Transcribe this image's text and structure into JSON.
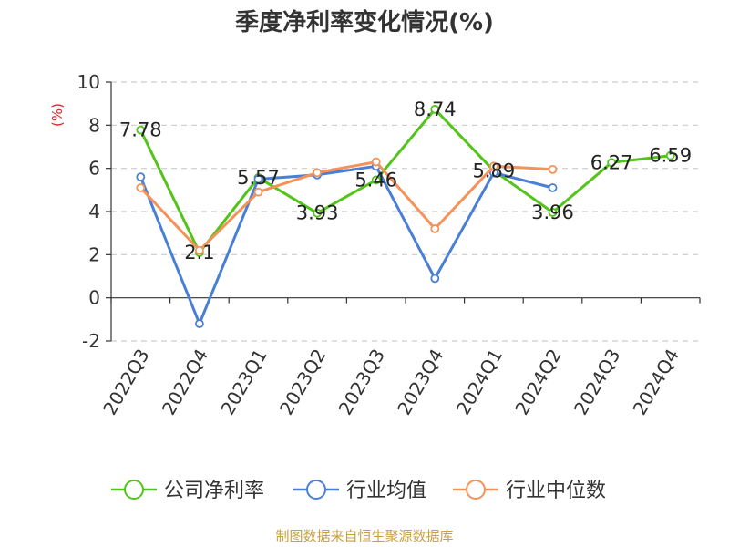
{
  "chart_data": {
    "type": "line",
    "title": "季度净利率变化情况(%)",
    "ylabel": "(%)",
    "xlabel": "",
    "categories": [
      "2022Q3",
      "2022Q4",
      "2023Q1",
      "2023Q2",
      "2023Q3",
      "2023Q4",
      "2024Q1",
      "2024Q2",
      "2024Q3",
      "2024Q4"
    ],
    "ylim": [
      -2,
      10
    ],
    "yticks": [
      -2,
      0,
      2,
      4,
      6,
      8,
      10
    ],
    "grid": true,
    "legend_position": "bottom",
    "series": [
      {
        "name": "公司净利率",
        "color": "#52c41a",
        "values": [
          7.78,
          2.1,
          5.57,
          3.93,
          5.46,
          8.74,
          5.89,
          3.96,
          6.27,
          6.59
        ],
        "labels": [
          "7.78",
          "2.1",
          "5.57",
          "3.93",
          "5.46",
          "8.74",
          "5.89",
          "3.96",
          "6.27",
          "6.59"
        ]
      },
      {
        "name": "行业均值",
        "color": "#4a7fd6",
        "values": [
          5.6,
          -1.2,
          5.5,
          5.7,
          6.1,
          0.9,
          5.8,
          5.1,
          null,
          null
        ]
      },
      {
        "name": "行业中位数",
        "color": "#f59259",
        "values": [
          5.1,
          2.2,
          4.9,
          5.8,
          6.3,
          3.2,
          6.1,
          5.95,
          null,
          null
        ]
      }
    ]
  },
  "source": "制图数据来自恒生聚源数据库"
}
